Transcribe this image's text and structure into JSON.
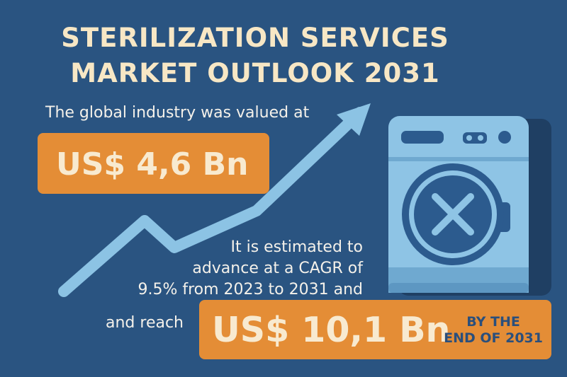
{
  "title": {
    "line1": "STERILIZATION SERVICES",
    "line2": "MARKET OUTLOOK 2031"
  },
  "intro_text": "The global industry was valued at",
  "current_value": "US$ 4,6 Bn",
  "estimate_text": {
    "line1": "It is estimated to",
    "line2": "advance at a CAGR of",
    "line3": "9.5% from 2023 to 2031 and"
  },
  "reach_text": "and reach",
  "future_value": "US$ 10,1 Bn",
  "by_text": {
    "line1": "BY THE",
    "line2": "END OF 2031"
  },
  "colors": {
    "background": "#2a5481",
    "accent_orange": "#e48d36",
    "title_cream": "#f7e7c5",
    "arrow_blue": "#8cc3e4",
    "machine_light_blue": "#8ec4e5",
    "machine_dark_blue": "#2c5b8e"
  },
  "icons": {
    "trend": "growth-arrow-icon",
    "machine": "washing-machine-icon",
    "drum": "x-mark-icon"
  }
}
